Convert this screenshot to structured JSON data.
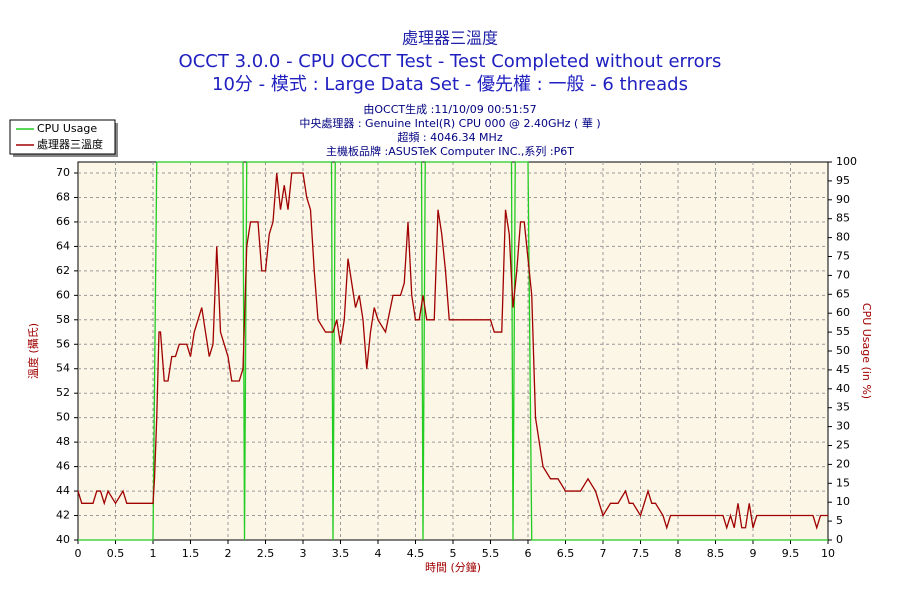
{
  "chart_data": {
    "type": "line",
    "title": "處理器三溫度",
    "subtitle": "OCCT 3.0.0 - CPU OCCT Test - Test Completed without errors",
    "subtitle2": "10分 - 模式 : Large Data Set - 優先權 : 一般 - 6 threads",
    "info": [
      "由OCCT生成 :11/10/09 00:51:57",
      "中央處理器 : Genuine Intel(R) CPU 000 @ 2.40GHz (  華  )",
      "超頻 : 4046.34 MHz",
      "主機板品牌 :ASUSTeK Computer INC.,系列 :P6T"
    ],
    "x_label": "時間 (分鐘)",
    "y_label": "溫度 (攝氏)",
    "y2_label": "CPU Usage (in %)",
    "xlim": [
      0,
      10
    ],
    "xticks": [
      0,
      0.5,
      1,
      1.5,
      2,
      2.5,
      3,
      3.5,
      4,
      4.5,
      5,
      5.5,
      6,
      6.5,
      7,
      7.5,
      8,
      8.5,
      9,
      9.5,
      10
    ],
    "ylim": [
      40,
      70.9
    ],
    "yticks": [
      40,
      42,
      44,
      46,
      48,
      50,
      52,
      54,
      56,
      58,
      60,
      62,
      64,
      66,
      68,
      70
    ],
    "y2lim": [
      0,
      100
    ],
    "y2ticks": [
      0,
      5,
      10,
      15,
      20,
      25,
      30,
      35,
      40,
      45,
      50,
      55,
      60,
      65,
      70,
      75,
      80,
      85,
      90,
      95,
      100
    ],
    "grid": true,
    "legend": "top-left",
    "series": [
      {
        "name": "CPU Usage",
        "color": "#22cc22",
        "axis": "y2",
        "x": [
          0,
          1.0,
          1.05,
          2.2,
          2.22,
          2.25,
          3.38,
          3.4,
          3.43,
          4.58,
          4.6,
          4.63,
          5.78,
          5.8,
          5.83,
          6.0,
          6.05,
          10
        ],
        "values": [
          0,
          0,
          100,
          100,
          0,
          100,
          100,
          0,
          100,
          100,
          0,
          100,
          100,
          0,
          100,
          100,
          0,
          0
        ]
      },
      {
        "name": "處理器三溫度",
        "color": "#a00000",
        "x": [
          0,
          0.05,
          0.2,
          0.25,
          0.3,
          0.35,
          0.4,
          0.5,
          0.6,
          0.65,
          0.75,
          1.0,
          1.02,
          1.05,
          1.08,
          1.1,
          1.15,
          1.2,
          1.25,
          1.3,
          1.35,
          1.45,
          1.5,
          1.55,
          1.6,
          1.65,
          1.7,
          1.75,
          1.8,
          1.85,
          1.88,
          1.9,
          1.95,
          2.0,
          2.05,
          2.15,
          2.2,
          2.25,
          2.3,
          2.4,
          2.45,
          2.5,
          2.55,
          2.6,
          2.65,
          2.7,
          2.75,
          2.8,
          2.85,
          3.0,
          3.05,
          3.1,
          3.15,
          3.2,
          3.3,
          3.4,
          3.45,
          3.5,
          3.55,
          3.6,
          3.65,
          3.7,
          3.75,
          3.8,
          3.85,
          3.9,
          3.95,
          4.0,
          4.1,
          4.2,
          4.3,
          4.35,
          4.4,
          4.45,
          4.5,
          4.55,
          4.6,
          4.65,
          4.75,
          4.8,
          4.85,
          4.9,
          4.95,
          5.5,
          5.55,
          5.65,
          5.7,
          5.75,
          5.8,
          5.85,
          5.9,
          5.95,
          6.0,
          6.05,
          6.1,
          6.15,
          6.2,
          6.3,
          6.4,
          6.5,
          6.7,
          6.8,
          6.9,
          7.0,
          7.1,
          7.2,
          7.3,
          7.35,
          7.4,
          7.5,
          7.6,
          7.65,
          7.7,
          7.8,
          7.85,
          7.9,
          8.0,
          8.6,
          8.65,
          8.7,
          8.75,
          8.8,
          8.85,
          8.9,
          8.95,
          9.0,
          9.05,
          9.8,
          9.85,
          9.9,
          10
        ],
        "values": [
          44,
          43,
          43,
          44,
          44,
          43,
          44,
          43,
          44,
          43,
          43,
          43,
          45,
          50,
          57,
          57,
          53,
          53,
          55,
          55,
          56,
          56,
          55,
          57,
          58,
          59,
          57,
          55,
          56,
          64,
          60,
          57,
          56,
          55,
          53,
          53,
          54,
          64,
          66,
          66,
          62,
          62,
          65,
          66,
          70,
          67,
          69,
          67,
          70,
          70,
          68,
          67,
          62,
          58,
          57,
          57,
          58,
          56,
          58,
          63,
          61,
          59,
          60,
          58,
          54,
          57,
          59,
          58,
          57,
          60,
          60,
          61,
          66,
          60,
          58,
          58,
          60,
          58,
          58,
          67,
          65,
          62,
          58,
          58,
          57,
          57,
          67,
          65,
          59,
          62,
          66,
          66,
          63,
          60,
          50,
          48,
          46,
          45,
          45,
          44,
          44,
          45,
          44,
          42,
          43,
          43,
          44,
          43,
          43,
          42,
          44,
          43,
          43,
          42,
          41,
          42,
          42,
          42,
          41,
          42,
          41,
          43,
          41,
          41,
          43,
          41,
          42,
          42,
          41,
          42,
          42
        ]
      }
    ]
  }
}
